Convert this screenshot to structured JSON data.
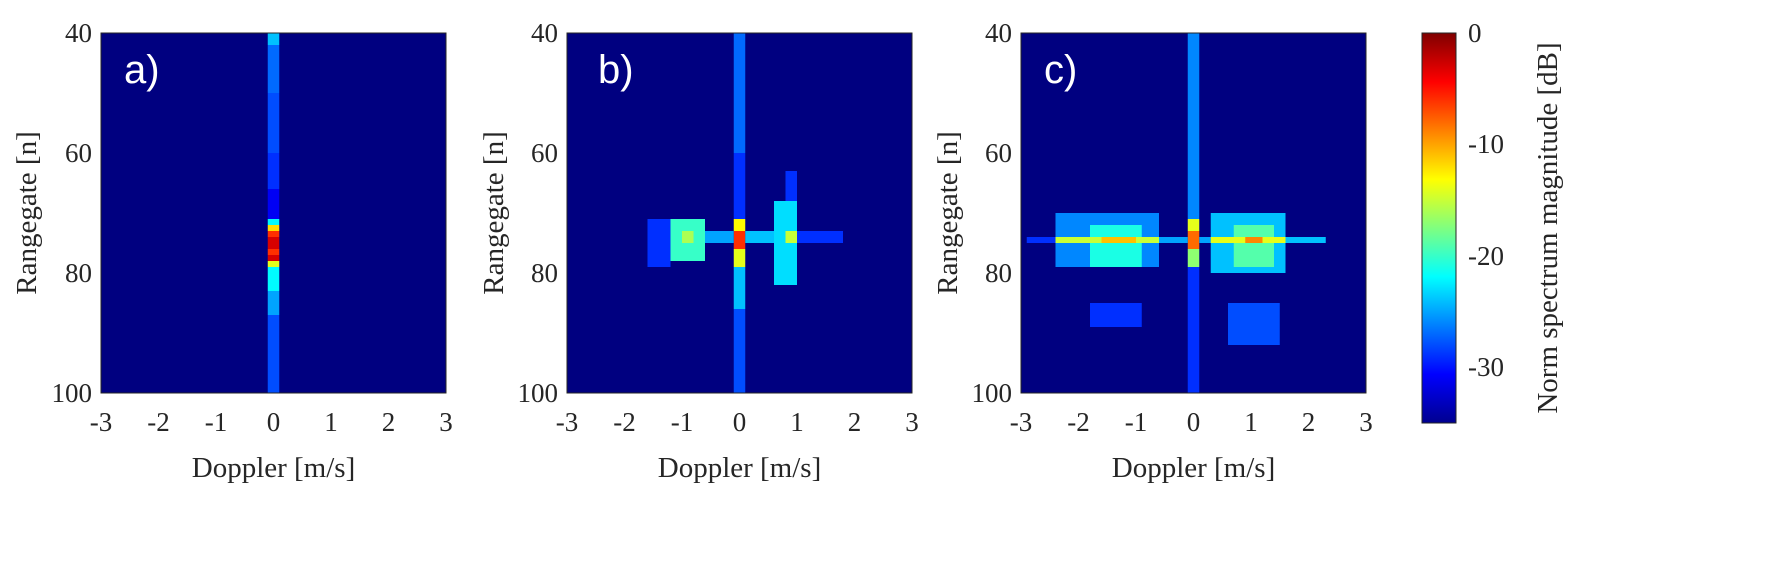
{
  "chart_data": [
    {
      "type": "heatmap",
      "panel_label": "a)",
      "xlabel": "Doppler [m/s]",
      "ylabel": "Rangegate [n]",
      "xlim": [
        -3,
        3
      ],
      "ylim": [
        40,
        100
      ],
      "x_ticks": [
        "-3",
        "-2",
        "-1",
        "0",
        "1",
        "2",
        "3"
      ],
      "y_ticks": [
        "40",
        "60",
        "80",
        "100"
      ],
      "units": "dB",
      "background_db": -35,
      "cells": [
        {
          "x0": -0.1,
          "x1": 0.1,
          "y0": 40,
          "y1": 42,
          "db": -24
        },
        {
          "x0": -0.1,
          "x1": 0.1,
          "y0": 42,
          "y1": 50,
          "db": -27
        },
        {
          "x0": -0.1,
          "x1": 0.1,
          "y0": 50,
          "y1": 60,
          "db": -28
        },
        {
          "x0": -0.1,
          "x1": 0.1,
          "y0": 60,
          "y1": 66,
          "db": -29
        },
        {
          "x0": -0.1,
          "x1": 0.1,
          "y0": 66,
          "y1": 71,
          "db": -31
        },
        {
          "x0": -0.1,
          "x1": 0.1,
          "y0": 71,
          "y1": 72,
          "db": -22
        },
        {
          "x0": -0.1,
          "x1": 0.1,
          "y0": 72,
          "y1": 73,
          "db": -12
        },
        {
          "x0": -0.1,
          "x1": 0.1,
          "y0": 73,
          "y1": 74,
          "db": -6
        },
        {
          "x0": -0.1,
          "x1": 0.1,
          "y0": 74,
          "y1": 76,
          "db": -3
        },
        {
          "x0": -0.1,
          "x1": 0.1,
          "y0": 76,
          "y1": 77,
          "db": -6
        },
        {
          "x0": -0.1,
          "x1": 0.1,
          "y0": 77,
          "y1": 78,
          "db": -3
        },
        {
          "x0": -0.1,
          "x1": 0.1,
          "y0": 78,
          "y1": 79,
          "db": -14
        },
        {
          "x0": -0.1,
          "x1": 0.1,
          "y0": 79,
          "y1": 83,
          "db": -22
        },
        {
          "x0": -0.1,
          "x1": 0.1,
          "y0": 83,
          "y1": 87,
          "db": -25
        },
        {
          "x0": -0.1,
          "x1": 0.1,
          "y0": 87,
          "y1": 100,
          "db": -28
        }
      ]
    },
    {
      "type": "heatmap",
      "panel_label": "b)",
      "xlabel": "Doppler [m/s]",
      "ylabel": "Rangegate [n]",
      "xlim": [
        -3,
        3
      ],
      "ylim": [
        40,
        100
      ],
      "x_ticks": [
        "-3",
        "-2",
        "-1",
        "0",
        "1",
        "2",
        "3"
      ],
      "y_ticks": [
        "40",
        "60",
        "80",
        "100"
      ],
      "units": "dB",
      "background_db": -35,
      "cells": [
        {
          "x0": -0.1,
          "x1": 0.1,
          "y0": 40,
          "y1": 60,
          "db": -27
        },
        {
          "x0": -0.1,
          "x1": 0.1,
          "y0": 60,
          "y1": 71,
          "db": -29
        },
        {
          "x0": -0.1,
          "x1": 0.1,
          "y0": 71,
          "y1": 73,
          "db": -13
        },
        {
          "x0": -0.1,
          "x1": 0.1,
          "y0": 73,
          "y1": 76,
          "db": -6
        },
        {
          "x0": -0.1,
          "x1": 0.1,
          "y0": 76,
          "y1": 79,
          "db": -14
        },
        {
          "x0": -0.1,
          "x1": 0.1,
          "y0": 79,
          "y1": 86,
          "db": -24
        },
        {
          "x0": -0.1,
          "x1": 0.1,
          "y0": 86,
          "y1": 100,
          "db": -28
        },
        {
          "x0": -1.6,
          "x1": -1.2,
          "y0": 71,
          "y1": 79,
          "db": -29
        },
        {
          "x0": -1.2,
          "x1": -0.6,
          "y0": 71,
          "y1": 78,
          "db": -20
        },
        {
          "x0": -1.0,
          "x1": -0.8,
          "y0": 73,
          "y1": 75,
          "db": -16
        },
        {
          "x0": -0.6,
          "x1": -0.1,
          "y0": 73,
          "y1": 75,
          "db": -25
        },
        {
          "x0": 0.1,
          "x1": 0.6,
          "y0": 73,
          "y1": 75,
          "db": -24
        },
        {
          "x0": 0.6,
          "x1": 1.0,
          "y0": 68,
          "y1": 82,
          "db": -23
        },
        {
          "x0": 0.8,
          "x1": 1.0,
          "y0": 73,
          "y1": 75,
          "db": -15
        },
        {
          "x0": 0.8,
          "x1": 1.0,
          "y0": 63,
          "y1": 68,
          "db": -29
        },
        {
          "x0": 1.0,
          "x1": 1.8,
          "y0": 73,
          "y1": 75,
          "db": -29
        }
      ]
    },
    {
      "type": "heatmap",
      "panel_label": "c)",
      "xlabel": "Doppler [m/s]",
      "ylabel": "Rangegate [n]",
      "xlim": [
        -3,
        3
      ],
      "ylim": [
        40,
        100
      ],
      "x_ticks": [
        "-3",
        "-2",
        "-1",
        "0",
        "1",
        "2",
        "3"
      ],
      "y_ticks": [
        "40",
        "60",
        "80",
        "100"
      ],
      "units": "dB",
      "background_db": -35,
      "cells": [
        {
          "x0": -0.1,
          "x1": 0.1,
          "y0": 40,
          "y1": 71,
          "db": -26
        },
        {
          "x0": -0.1,
          "x1": 0.1,
          "y0": 71,
          "y1": 73,
          "db": -14
        },
        {
          "x0": -0.1,
          "x1": 0.1,
          "y0": 73,
          "y1": 76,
          "db": -8
        },
        {
          "x0": -0.1,
          "x1": 0.1,
          "y0": 76,
          "y1": 79,
          "db": -17
        },
        {
          "x0": -0.1,
          "x1": 0.1,
          "y0": 79,
          "y1": 100,
          "db": -29
        },
        {
          "x0": -2.9,
          "x1": -2.4,
          "y0": 74,
          "y1": 75,
          "db": -29
        },
        {
          "x0": -2.4,
          "x1": -0.6,
          "y0": 70,
          "y1": 79,
          "db": -26
        },
        {
          "x0": -1.8,
          "x1": -0.9,
          "y0": 72,
          "y1": 79,
          "db": -21
        },
        {
          "x0": -2.4,
          "x1": -0.6,
          "y0": 74,
          "y1": 75,
          "db": -15
        },
        {
          "x0": -1.6,
          "x1": -1.0,
          "y0": 74,
          "y1": 75,
          "db": -11
        },
        {
          "x0": -1.8,
          "x1": -0.9,
          "y0": 85,
          "y1": 89,
          "db": -29
        },
        {
          "x0": -0.6,
          "x1": -0.1,
          "y0": 74,
          "y1": 75,
          "db": -25
        },
        {
          "x0": 0.1,
          "x1": 0.3,
          "y0": 74,
          "y1": 75,
          "db": -25
        },
        {
          "x0": 0.3,
          "x1": 1.6,
          "y0": 70,
          "y1": 80,
          "db": -24
        },
        {
          "x0": 0.7,
          "x1": 1.4,
          "y0": 72,
          "y1": 79,
          "db": -19
        },
        {
          "x0": 0.3,
          "x1": 1.6,
          "y0": 74,
          "y1": 75,
          "db": -14
        },
        {
          "x0": 0.9,
          "x1": 1.2,
          "y0": 74,
          "y1": 75,
          "db": -9
        },
        {
          "x0": 0.6,
          "x1": 1.5,
          "y0": 85,
          "y1": 92,
          "db": -28
        },
        {
          "x0": 1.6,
          "x1": 2.3,
          "y0": 74,
          "y1": 75,
          "db": -24
        }
      ]
    }
  ],
  "colorbar": {
    "label": "Norm spectrum magnitude [dB]",
    "range": [
      -35,
      0
    ],
    "ticks": [
      "0",
      "-10",
      "-20",
      "-30"
    ]
  },
  "colors": {
    "colormap": "jet",
    "axis_color": "#262626"
  }
}
